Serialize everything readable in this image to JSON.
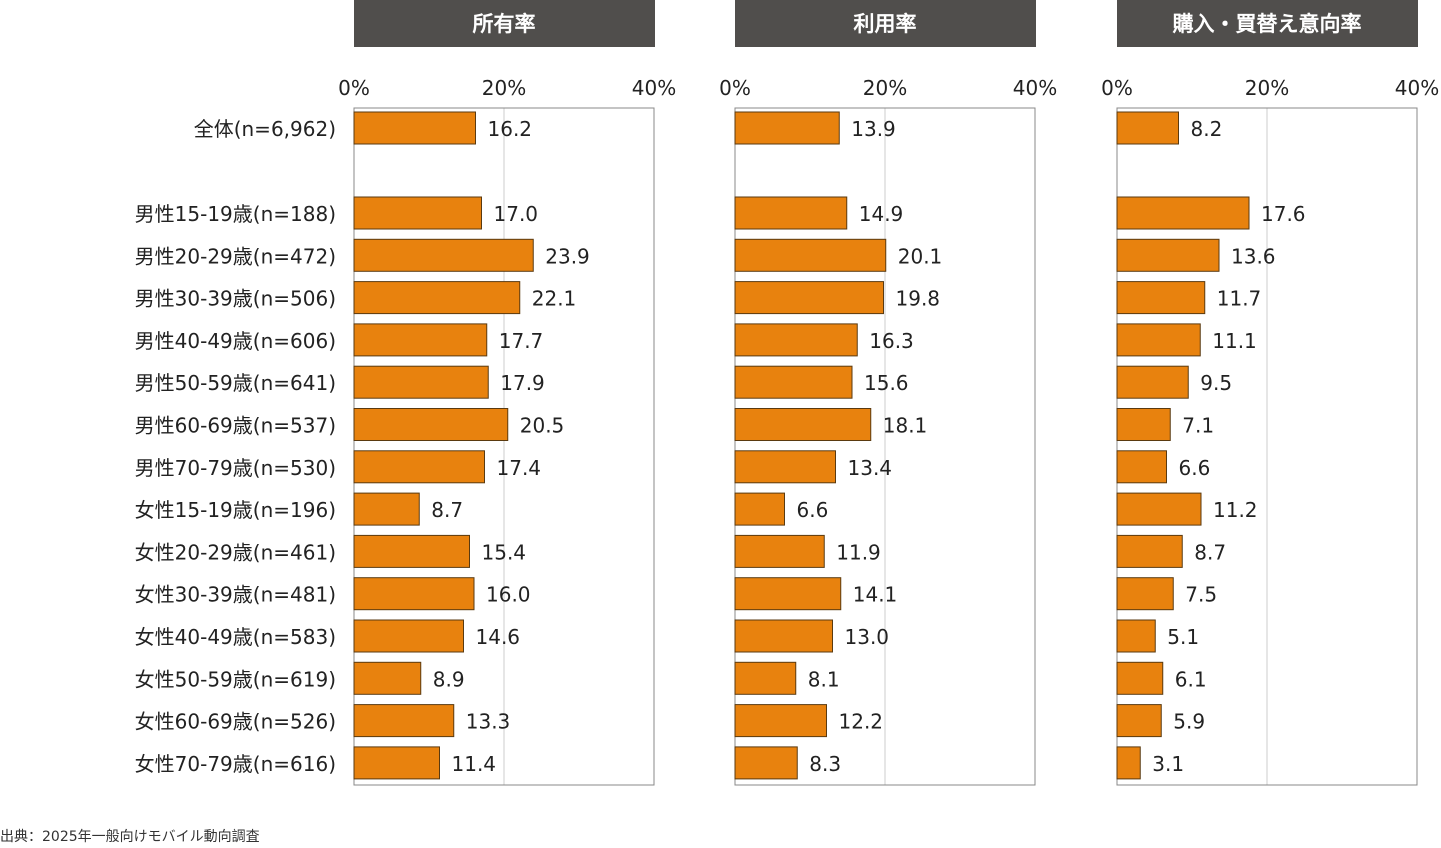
{
  "chart_data": {
    "type": "bar",
    "orientation": "horizontal",
    "categories": [
      "全体(n=6,962)",
      "男性15-19歳(n=188)",
      "男性20-29歳(n=472)",
      "男性30-39歳(n=506)",
      "男性40-49歳(n=606)",
      "男性50-59歳(n=641)",
      "男性60-69歳(n=537)",
      "男性70-79歳(n=530)",
      "女性15-19歳(n=196)",
      "女性20-29歳(n=461)",
      "女性30-39歳(n=481)",
      "女性40-49歳(n=583)",
      "女性50-59歳(n=619)",
      "女性60-69歳(n=526)",
      "女性70-79歳(n=616)"
    ],
    "xlim": [
      0,
      40
    ],
    "ticks": [
      0,
      20,
      40
    ],
    "tick_labels": [
      "0%",
      "20%",
      "40%"
    ],
    "grid": true,
    "bar_color": "#E8820E",
    "series": [
      {
        "name": "所有率",
        "values": [
          16.2,
          17.0,
          23.9,
          22.1,
          17.7,
          17.9,
          20.5,
          17.4,
          8.7,
          15.4,
          16.0,
          14.6,
          8.9,
          13.3,
          11.4
        ]
      },
      {
        "name": "利用率",
        "values": [
          13.9,
          14.9,
          20.1,
          19.8,
          16.3,
          15.6,
          18.1,
          13.4,
          6.6,
          11.9,
          14.1,
          13.0,
          8.1,
          12.2,
          8.3
        ]
      },
      {
        "name": "購入・買替え意向率",
        "values": [
          8.2,
          17.6,
          13.6,
          11.7,
          11.1,
          9.5,
          7.1,
          6.6,
          11.2,
          8.7,
          7.5,
          5.1,
          6.1,
          5.9,
          3.1
        ]
      }
    ]
  },
  "source_note": "出典：2025年一般向けモバイル動向調査",
  "colors": {
    "header_bg": "#504E4C",
    "header_text": "#FFFFFF",
    "axis": "#888888",
    "grid": "#CCCCCC"
  }
}
